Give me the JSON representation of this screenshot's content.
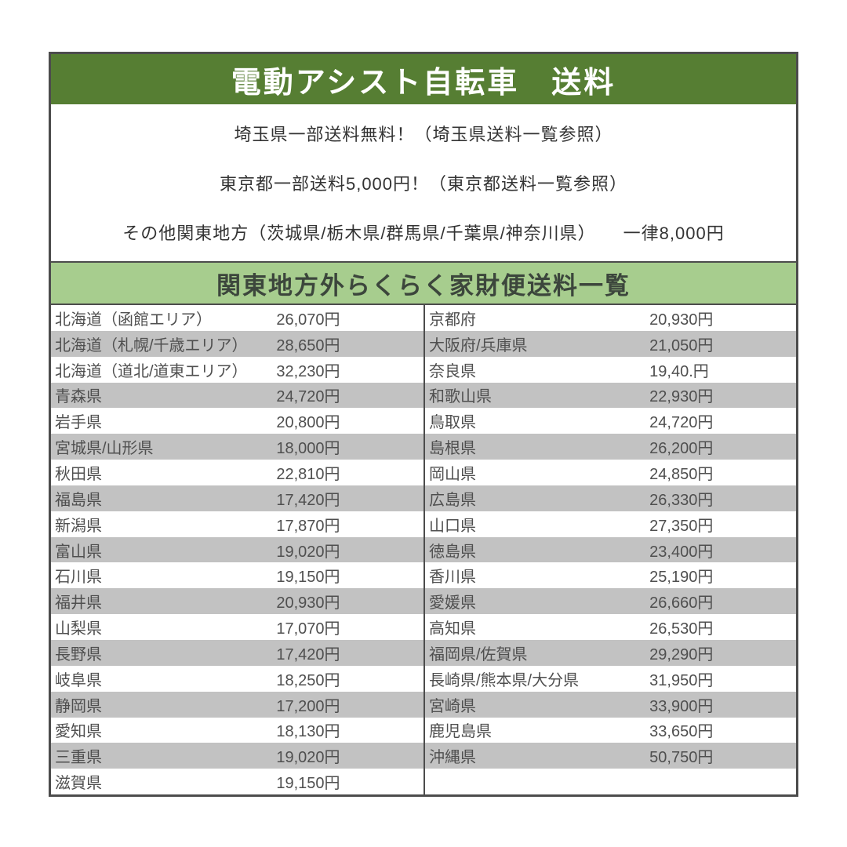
{
  "page": {
    "title": "電動アシスト自転車　送料",
    "notes": [
      "埼玉県一部送料無料！（埼玉県送料一覧参照）",
      "東京都一部送料5,000円！（東京都送料一覧参照）",
      "その他関東地方（茨城県/栃木県/群馬県/千葉県/神奈川県）　　一律8,000円"
    ],
    "table_title": "関東地方外らくらく家財便送料一覧"
  },
  "colors": {
    "header_green": "#567e33",
    "banner_green": "#a7cd8e",
    "banner_text": "#3c463c",
    "stripe_gray": "#c2c2c2",
    "border_dark": "#4c4c4c",
    "table_text": "#4f4f4f"
  },
  "shipping_table": {
    "left": [
      {
        "region": "北海道（函館エリア）",
        "price": "26,070円"
      },
      {
        "region": "北海道（札幌/千歳エリア）",
        "price": "28,650円"
      },
      {
        "region": "北海道（道北/道東エリア）",
        "price": "32,230円"
      },
      {
        "region": "青森県",
        "price": "24,720円"
      },
      {
        "region": "岩手県",
        "price": "20,800円"
      },
      {
        "region": "宮城県/山形県",
        "price": "18,000円"
      },
      {
        "region": "秋田県",
        "price": "22,810円"
      },
      {
        "region": "福島県",
        "price": "17,420円"
      },
      {
        "region": "新潟県",
        "price": "17,870円"
      },
      {
        "region": "富山県",
        "price": "19,020円"
      },
      {
        "region": "石川県",
        "price": "19,150円"
      },
      {
        "region": "福井県",
        "price": "20,930円"
      },
      {
        "region": "山梨県",
        "price": "17,070円"
      },
      {
        "region": "長野県",
        "price": "17,420円"
      },
      {
        "region": "岐阜県",
        "price": "18,250円"
      },
      {
        "region": "静岡県",
        "price": "17,200円"
      },
      {
        "region": "愛知県",
        "price": "18,130円"
      },
      {
        "region": "三重県",
        "price": "19,020円"
      },
      {
        "region": "滋賀県",
        "price": "19,150円"
      }
    ],
    "right": [
      {
        "region": "京都府",
        "price": "20,930円"
      },
      {
        "region": "大阪府/兵庫県",
        "price": "21,050円"
      },
      {
        "region": "奈良県",
        "price": "19,40.円"
      },
      {
        "region": "和歌山県",
        "price": "22,930円"
      },
      {
        "region": "鳥取県",
        "price": "24,720円"
      },
      {
        "region": "島根県",
        "price": "26,200円"
      },
      {
        "region": "岡山県",
        "price": "24,850円"
      },
      {
        "region": "広島県",
        "price": "26,330円"
      },
      {
        "region": "山口県",
        "price": "27,350円"
      },
      {
        "region": "徳島県",
        "price": "23,400円"
      },
      {
        "region": "香川県",
        "price": "25,190円"
      },
      {
        "region": "愛媛県",
        "price": "26,660円"
      },
      {
        "region": "高知県",
        "price": "26,530円"
      },
      {
        "region": "福岡県/佐賀県",
        "price": "29,290円"
      },
      {
        "region": "長崎県/熊本県/大分県",
        "price": "31,950円"
      },
      {
        "region": "宮崎県",
        "price": "33,900円"
      },
      {
        "region": "鹿児島県",
        "price": "33,650円"
      },
      {
        "region": "沖縄県",
        "price": "50,750円"
      },
      {
        "region": "",
        "price": ""
      }
    ]
  }
}
